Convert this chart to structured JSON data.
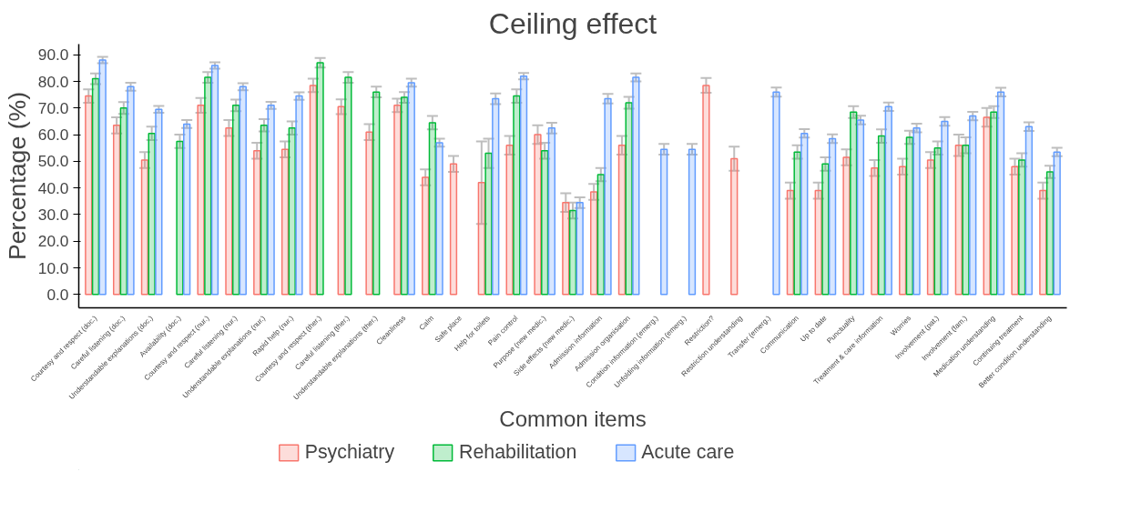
{
  "chart_data": {
    "type": "bar",
    "title": "Ceiling effect",
    "xlabel": "Common items",
    "ylabel": "Percentage (%)",
    "categories": [
      "Courtesy and respect (doc.)",
      "Careful listening (doc.)",
      "Understandable explanations (doc.)",
      "Availability (doc.)",
      "Courtesy and respect (nur.)",
      "Careful listening (nur.)",
      "Understandable explanations (nur.)",
      "Rapid help (nur.)",
      "Courtesy and respect (ther.)",
      "Careful listening (ther.)",
      "Understandable explanations (ther.)",
      "Cleanliness",
      "Calm",
      "Safe place",
      "Help for toilets",
      "Pain control",
      "Purpose (new medic.)",
      "Side effects (new medic.)",
      "Admission information",
      "Admission organisation",
      "Condition information (emerg.)",
      "Unfolding information (emerg.)",
      "Restriction?",
      "Restriction understanding",
      "Transfer (emerg.)",
      "Communication",
      "Up to date",
      "Punctuality",
      "Treatment & care information",
      "Worries",
      "Involvement (pat.)",
      "Involvement (fam.)",
      "Medication understanding",
      "Continuing treatment",
      "Better condition understanding"
    ],
    "series": [
      {
        "name": "Psychiatry",
        "color": "#f8766d",
        "values": [
          74.5,
          63.5,
          50.5,
          null,
          71,
          62.5,
          54,
          54.5,
          78.5,
          70.5,
          61,
          71,
          44,
          49,
          42,
          56,
          60,
          34.5,
          38.5,
          56,
          null,
          null,
          78.5,
          51,
          null,
          39,
          39,
          51.5,
          47.5,
          48,
          50.5,
          56,
          66.5,
          48,
          39
        ],
        "errors": [
          2.5,
          3,
          3,
          null,
          2.8,
          3,
          3,
          3,
          2.5,
          2.8,
          3,
          2.5,
          3,
          3,
          15.5,
          3.5,
          3.5,
          3.5,
          3,
          3.5,
          null,
          null,
          2.8,
          4.5,
          null,
          3,
          3,
          3,
          3,
          3,
          3,
          4,
          3.5,
          3,
          3
        ]
      },
      {
        "name": "Rehabilitation",
        "color": "#00ba38",
        "values": [
          81,
          70,
          60.5,
          57.5,
          81.5,
          71,
          63.5,
          62.5,
          87,
          81.5,
          76,
          74,
          64.5,
          null,
          53,
          74.5,
          54,
          31.5,
          45,
          72,
          null,
          null,
          null,
          null,
          null,
          53.5,
          49,
          68.5,
          59.5,
          59,
          55,
          56,
          68.5,
          50.5,
          46
        ],
        "errors": [
          2,
          2.2,
          2.5,
          2.5,
          2,
          2.2,
          2.3,
          2.5,
          1.8,
          2,
          2,
          2,
          2.5,
          null,
          5.5,
          2.5,
          3,
          3,
          2.5,
          2.2,
          null,
          null,
          null,
          null,
          null,
          2.5,
          2.5,
          2.2,
          2.5,
          2.5,
          2.5,
          3,
          2.2,
          2.5,
          2.3
        ]
      },
      {
        "name": "Acute care",
        "color": "#619cff",
        "values": [
          88,
          78,
          69.5,
          64,
          86,
          78,
          71,
          74.5,
          null,
          null,
          null,
          79.5,
          57,
          null,
          73.5,
          82,
          62.5,
          34.5,
          73.5,
          81.5,
          54.5,
          54.5,
          null,
          null,
          76,
          60.5,
          58.5,
          65.5,
          70.5,
          62.5,
          65,
          67,
          76,
          63,
          53.5
        ],
        "errors": [
          1.2,
          1.5,
          1.3,
          1.5,
          1.2,
          1.3,
          1.3,
          1.4,
          null,
          null,
          null,
          1.5,
          1.5,
          null,
          2,
          1.2,
          2,
          2,
          1.8,
          1.5,
          2,
          2,
          null,
          null,
          1.7,
          1.6,
          1.6,
          1.6,
          1.6,
          1.6,
          1.6,
          1.6,
          1.6,
          1.6,
          1.6
        ]
      }
    ],
    "ylim": [
      -5,
      94
    ],
    "yticks": [
      {
        "value": 0,
        "label": "0.0"
      },
      {
        "value": 10,
        "label": "10.0"
      },
      {
        "value": 20,
        "label": "20.0"
      },
      {
        "value": 30,
        "label": "30.0"
      },
      {
        "value": 40,
        "label": "40.0"
      },
      {
        "value": 50,
        "label": "50.0"
      },
      {
        "value": 60,
        "label": "60.0"
      },
      {
        "value": 70,
        "label": "70.0"
      },
      {
        "value": 80,
        "label": "80.0"
      },
      {
        "value": 90,
        "label": "90.0"
      }
    ],
    "grid": false,
    "legend": "bottom"
  }
}
